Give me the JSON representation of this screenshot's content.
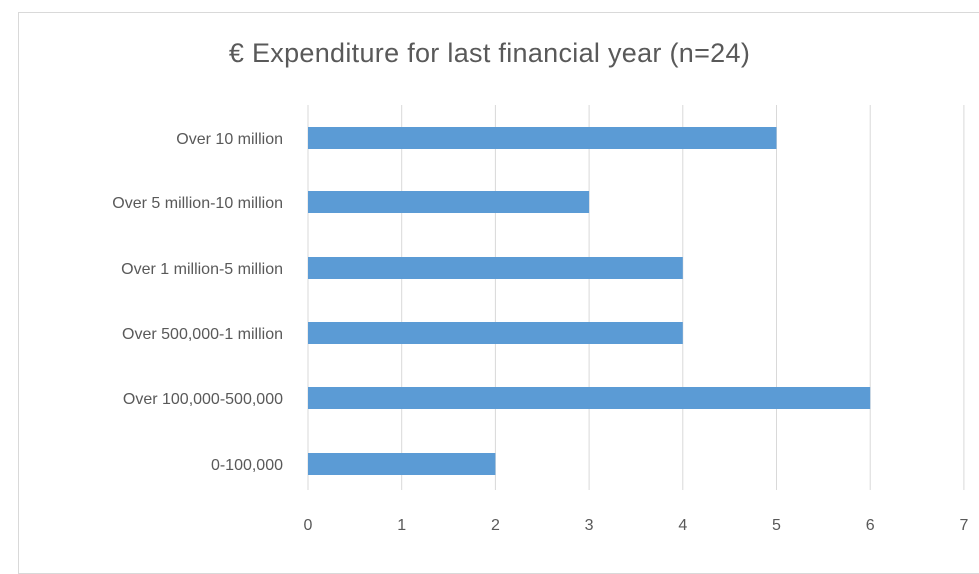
{
  "chart_data": {
    "type": "bar",
    "orientation": "horizontal",
    "title": "€ Expenditure for last financial year (n=24)",
    "categories": [
      "0-100,000",
      "Over 100,000-500,000",
      "Over 500,000-1 million",
      "Over 1 million-5 million",
      "Over 5 million-10 million",
      "Over 10 million"
    ],
    "values": [
      2,
      6,
      4,
      4,
      3,
      5
    ],
    "xlim": [
      0,
      7
    ],
    "xticks": [
      "0",
      "1",
      "2",
      "3",
      "4",
      "5",
      "6",
      "7"
    ],
    "xlabel": "",
    "ylabel": "",
    "grid": "vertical",
    "legend": "none",
    "bar_color": "#5b9bd5"
  }
}
